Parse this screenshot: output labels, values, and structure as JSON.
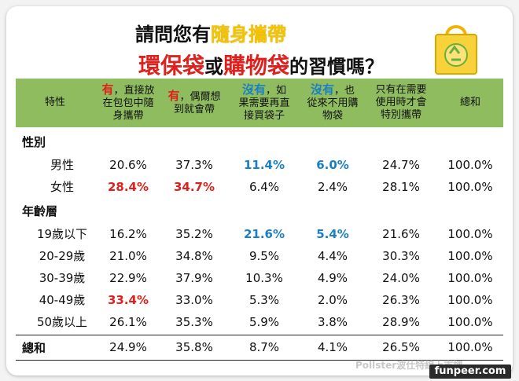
{
  "title": {
    "line1": [
      "請問您有",
      "隨身攜帶"
    ],
    "line2": [
      "環保袋",
      "或",
      "購物袋",
      "的習慣嗎？"
    ]
  },
  "colors": {
    "header_bg": "#8fbc5f",
    "red": "#e0201c",
    "blue": "#1a7fc4",
    "yellow": "#f5c400"
  },
  "icon": "eco-shopping-bag-icon",
  "headers": [
    {
      "plain": "特性"
    },
    {
      "em": "有",
      "rest": "，直接放",
      "line2": "在包包中隨",
      "line3": "身攜帶",
      "color": "red"
    },
    {
      "em": "有",
      "rest": "，偶爾想",
      "line2": "到就會帶",
      "color": "red"
    },
    {
      "em": "沒有",
      "rest": "，如",
      "line2": "果需要再直",
      "line3": "接買袋子",
      "color": "blue"
    },
    {
      "em": "沒有",
      "rest": "，也",
      "line2": "從來不用購",
      "line3": "物袋",
      "color": "blue"
    },
    {
      "plain": "只有在需要",
      "line2": "使用時才會",
      "line3": "特別攜帶"
    },
    {
      "plain": "總和"
    }
  ],
  "groups": {
    "gender": "性別",
    "age": "年齡層",
    "total": "總和"
  },
  "rows": {
    "male": {
      "label": "男性",
      "values": [
        "20.6%",
        "37.3%",
        "11.4%",
        "6.0%",
        "24.7%",
        "100.0%"
      ]
    },
    "female": {
      "label": "女性",
      "values": [
        "28.4%",
        "34.7%",
        "6.4%",
        "2.4%",
        "28.1%",
        "100.0%"
      ]
    },
    "a19": {
      "label": "19歲以下",
      "values": [
        "16.2%",
        "35.2%",
        "21.6%",
        "5.4%",
        "21.6%",
        "100.0%"
      ]
    },
    "a20": {
      "label": "20-29歲",
      "values": [
        "21.0%",
        "34.8%",
        "9.5%",
        "4.4%",
        "30.3%",
        "100.0%"
      ]
    },
    "a30": {
      "label": "30-39歲",
      "values": [
        "22.9%",
        "37.9%",
        "10.3%",
        "4.9%",
        "24.0%",
        "100.0%"
      ]
    },
    "a40": {
      "label": "40-49歲",
      "values": [
        "33.4%",
        "33.0%",
        "5.3%",
        "2.0%",
        "26.3%",
        "100.0%"
      ]
    },
    "a50": {
      "label": "50歲以上",
      "values": [
        "26.1%",
        "35.3%",
        "5.9%",
        "3.8%",
        "28.9%",
        "100.0%"
      ]
    },
    "total": {
      "values": [
        "24.9%",
        "35.8%",
        "8.7%",
        "4.1%",
        "26.5%",
        "100.0%"
      ]
    }
  },
  "watermark": "Pollster波仕特線上市調",
  "site": "funpeer.com"
}
